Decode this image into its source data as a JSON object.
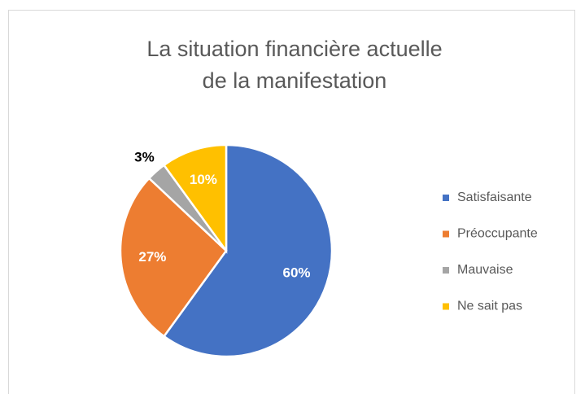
{
  "chart_data": {
    "type": "pie",
    "title": [
      "La situation financière actuelle",
      "de la manifestation"
    ],
    "categories": [
      "Satisfaisante",
      "Préoccupante",
      "Mauvaise",
      "Ne sait pas"
    ],
    "values": [
      60,
      27,
      3,
      10
    ],
    "value_labels": [
      "60%",
      "27%",
      "3%",
      "10%"
    ],
    "colors": [
      "#4472c4",
      "#ed7d31",
      "#a5a5a5",
      "#ffc000"
    ],
    "legend": "right"
  }
}
